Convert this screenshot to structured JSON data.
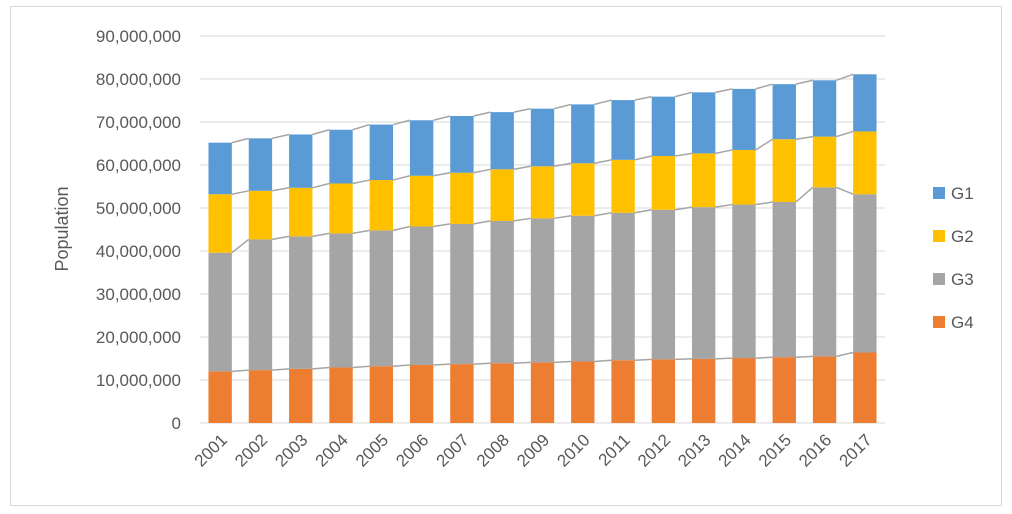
{
  "chart_data": {
    "type": "bar",
    "stacked": true,
    "title": "",
    "xlabel": "",
    "ylabel": "Population",
    "ylim": [
      0,
      90000000
    ],
    "ytick_step": 10000000,
    "ytick_labels": [
      "0",
      "10,000,000",
      "20,000,000",
      "30,000,000",
      "40,000,000",
      "50,000,000",
      "60,000,000",
      "70,000,000",
      "80,000,000",
      "90,000,000"
    ],
    "grid": true,
    "legend_position": "right",
    "series_lines": true,
    "categories": [
      "2001",
      "2002",
      "2003",
      "2004",
      "2005",
      "2006",
      "2007",
      "2008",
      "2009",
      "2010",
      "2011",
      "2012",
      "2013",
      "2014",
      "2015",
      "2016",
      "2017"
    ],
    "series": [
      {
        "name": "G4",
        "color": "#ed7d31",
        "values": [
          12000000,
          12300000,
          12600000,
          12900000,
          13200000,
          13500000,
          13700000,
          13900000,
          14100000,
          14300000,
          14600000,
          14800000,
          14900000,
          15100000,
          15300000,
          15500000,
          16400000
        ]
      },
      {
        "name": "G3",
        "color": "#a5a5a5",
        "values": [
          27600000,
          30400000,
          30800000,
          31200000,
          31600000,
          32200000,
          32600000,
          33100000,
          33500000,
          33900000,
          34300000,
          34800000,
          35300000,
          35700000,
          36100000,
          39300000,
          36800000
        ]
      },
      {
        "name": "G2",
        "color": "#ffc000",
        "values": [
          13600000,
          11300000,
          11300000,
          11600000,
          11700000,
          11800000,
          11900000,
          12000000,
          12100000,
          12200000,
          12300000,
          12500000,
          12500000,
          12700000,
          14600000,
          11800000,
          14600000
        ]
      },
      {
        "name": "G1",
        "color": "#5b9bd5",
        "values": [
          12000000,
          12200000,
          12400000,
          12500000,
          12900000,
          12900000,
          13200000,
          13300000,
          13400000,
          13700000,
          13900000,
          13800000,
          14200000,
          14200000,
          12800000,
          13100000,
          13300000
        ]
      }
    ],
    "legend_order": [
      "G1",
      "G2",
      "G3",
      "G4"
    ]
  }
}
